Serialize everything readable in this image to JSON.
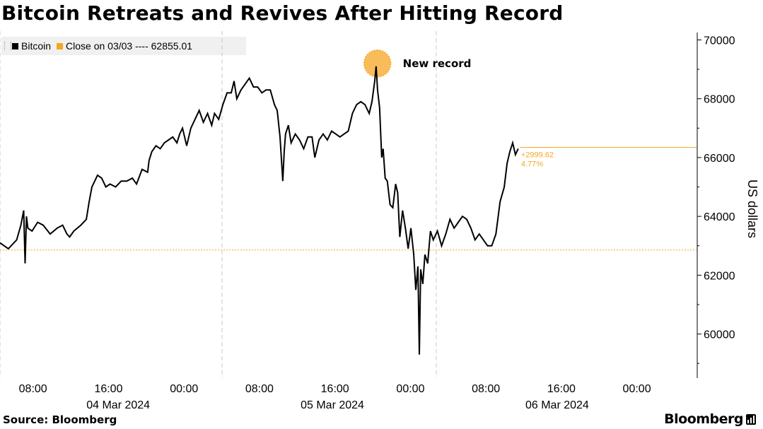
{
  "title": "Bitcoin Retreats and Revives After Hitting Record",
  "legend": {
    "series_label": "Bitcoin",
    "reference_label": "Close on 03/03 ---- 62855.01"
  },
  "source": "Source: Bloomberg",
  "brand": "Bloomberg",
  "colors": {
    "price": "#000000",
    "reference": "#f5a623",
    "grid": "#c8c8c8",
    "record": "#f5a623"
  },
  "chart_data": {
    "type": "line",
    "ylabel": "US dollars",
    "ylim": [
      58500,
      70300
    ],
    "yticks": [
      60000,
      62000,
      64000,
      66000,
      68000,
      70000
    ],
    "ytick_labels": [
      "60000",
      "62000",
      "64000",
      "66000",
      "68000",
      "70000"
    ],
    "xlim": [
      0,
      1
    ],
    "xticks": [
      {
        "x": 0.0474,
        "label": "08:00"
      },
      {
        "x": 0.1558,
        "label": "16:00"
      },
      {
        "x": 0.2642,
        "label": "00:00"
      },
      {
        "x": 0.3725,
        "label": "08:00"
      },
      {
        "x": 0.4809,
        "label": "16:00"
      },
      {
        "x": 0.5893,
        "label": "00:00"
      },
      {
        "x": 0.6976,
        "label": "08:00"
      },
      {
        "x": 0.806,
        "label": "16:00"
      },
      {
        "x": 0.9143,
        "label": "00:00"
      }
    ],
    "date_labels": [
      {
        "x": 0.1697,
        "label": "04 Mar 2024"
      },
      {
        "x": 0.4772,
        "label": "05 Mar 2024"
      },
      {
        "x": 0.7999,
        "label": "06 Mar 2024"
      }
    ],
    "day_boundaries": [
      0.0,
      0.3188,
      0.6264
    ],
    "reference_line": {
      "value": 62855.01
    },
    "change_annotation": {
      "abs": "+2999.62",
      "pct": "4.77%"
    },
    "record_annotation": {
      "label": "New record",
      "x": 0.5418,
      "y": 69200
    },
    "series": [
      {
        "name": "Bitcoin",
        "x": [
          0.0,
          0.012,
          0.024,
          0.03,
          0.034,
          0.036,
          0.038,
          0.04,
          0.046,
          0.054,
          0.062,
          0.072,
          0.082,
          0.09,
          0.096,
          0.1,
          0.106,
          0.116,
          0.124,
          0.128,
          0.132,
          0.136,
          0.14,
          0.146,
          0.152,
          0.158,
          0.166,
          0.174,
          0.182,
          0.19,
          0.196,
          0.204,
          0.212,
          0.214,
          0.218,
          0.224,
          0.23,
          0.236,
          0.242,
          0.248,
          0.254,
          0.258,
          0.262,
          0.268,
          0.274,
          0.28,
          0.286,
          0.292,
          0.298,
          0.304,
          0.308,
          0.314,
          0.32,
          0.326,
          0.332,
          0.336,
          0.34,
          0.346,
          0.352,
          0.358,
          0.364,
          0.37,
          0.376,
          0.382,
          0.388,
          0.394,
          0.398,
          0.402,
          0.406,
          0.408,
          0.41,
          0.414,
          0.418,
          0.424,
          0.43,
          0.436,
          0.442,
          0.448,
          0.452,
          0.458,
          0.464,
          0.47,
          0.476,
          0.482,
          0.488,
          0.494,
          0.5,
          0.506,
          0.512,
          0.518,
          0.524,
          0.53,
          0.534,
          0.538,
          0.54,
          0.542,
          0.545,
          0.548,
          0.55,
          0.553,
          0.556,
          0.56,
          0.564,
          0.568,
          0.571,
          0.574,
          0.578,
          0.582,
          0.586,
          0.59,
          0.594,
          0.597,
          0.6,
          0.602,
          0.604,
          0.607,
          0.61,
          0.614,
          0.618,
          0.622,
          0.628,
          0.634,
          0.64,
          0.646,
          0.652,
          0.658,
          0.664,
          0.67,
          0.676,
          0.682,
          0.688,
          0.694,
          0.7,
          0.706,
          0.712,
          0.718,
          0.724,
          0.728,
          0.732,
          0.736,
          0.74,
          0.744
        ],
        "y": [
          63100,
          62900,
          63200,
          63700,
          64200,
          62400,
          64000,
          63600,
          63500,
          63800,
          63700,
          63400,
          63600,
          63700,
          63400,
          63300,
          63500,
          63700,
          63900,
          64500,
          65000,
          65200,
          65400,
          65300,
          65000,
          65100,
          65000,
          65200,
          65200,
          65300,
          65100,
          65600,
          65500,
          65900,
          66200,
          66400,
          66300,
          66500,
          66600,
          66700,
          66500,
          66800,
          67000,
          66400,
          67000,
          67300,
          67600,
          67200,
          67500,
          67100,
          67500,
          67300,
          67800,
          68200,
          68200,
          68600,
          68000,
          68300,
          68500,
          68700,
          68400,
          68400,
          68200,
          68300,
          68300,
          67800,
          67600,
          66700,
          65200,
          66200,
          66800,
          67100,
          66500,
          66800,
          66600,
          66300,
          66700,
          66700,
          66000,
          66600,
          66800,
          66600,
          66900,
          66800,
          66700,
          66800,
          66900,
          67500,
          67800,
          67900,
          67800,
          67500,
          67900,
          68600,
          69100,
          68300,
          67700,
          66000,
          66300,
          65300,
          65200,
          64400,
          64300,
          65100,
          64800,
          63300,
          64200,
          63600,
          62900,
          63600,
          62700,
          61500,
          62300,
          59300,
          62200,
          61700,
          62700,
          62400,
          63500,
          63200,
          63500,
          63000,
          63400,
          63900,
          63600,
          63800,
          64000,
          63900,
          63600,
          63200,
          63400,
          63200,
          63000,
          63000,
          63400,
          64500,
          65000,
          65800,
          66200,
          66500,
          66100,
          66300
        ]
      }
    ]
  }
}
